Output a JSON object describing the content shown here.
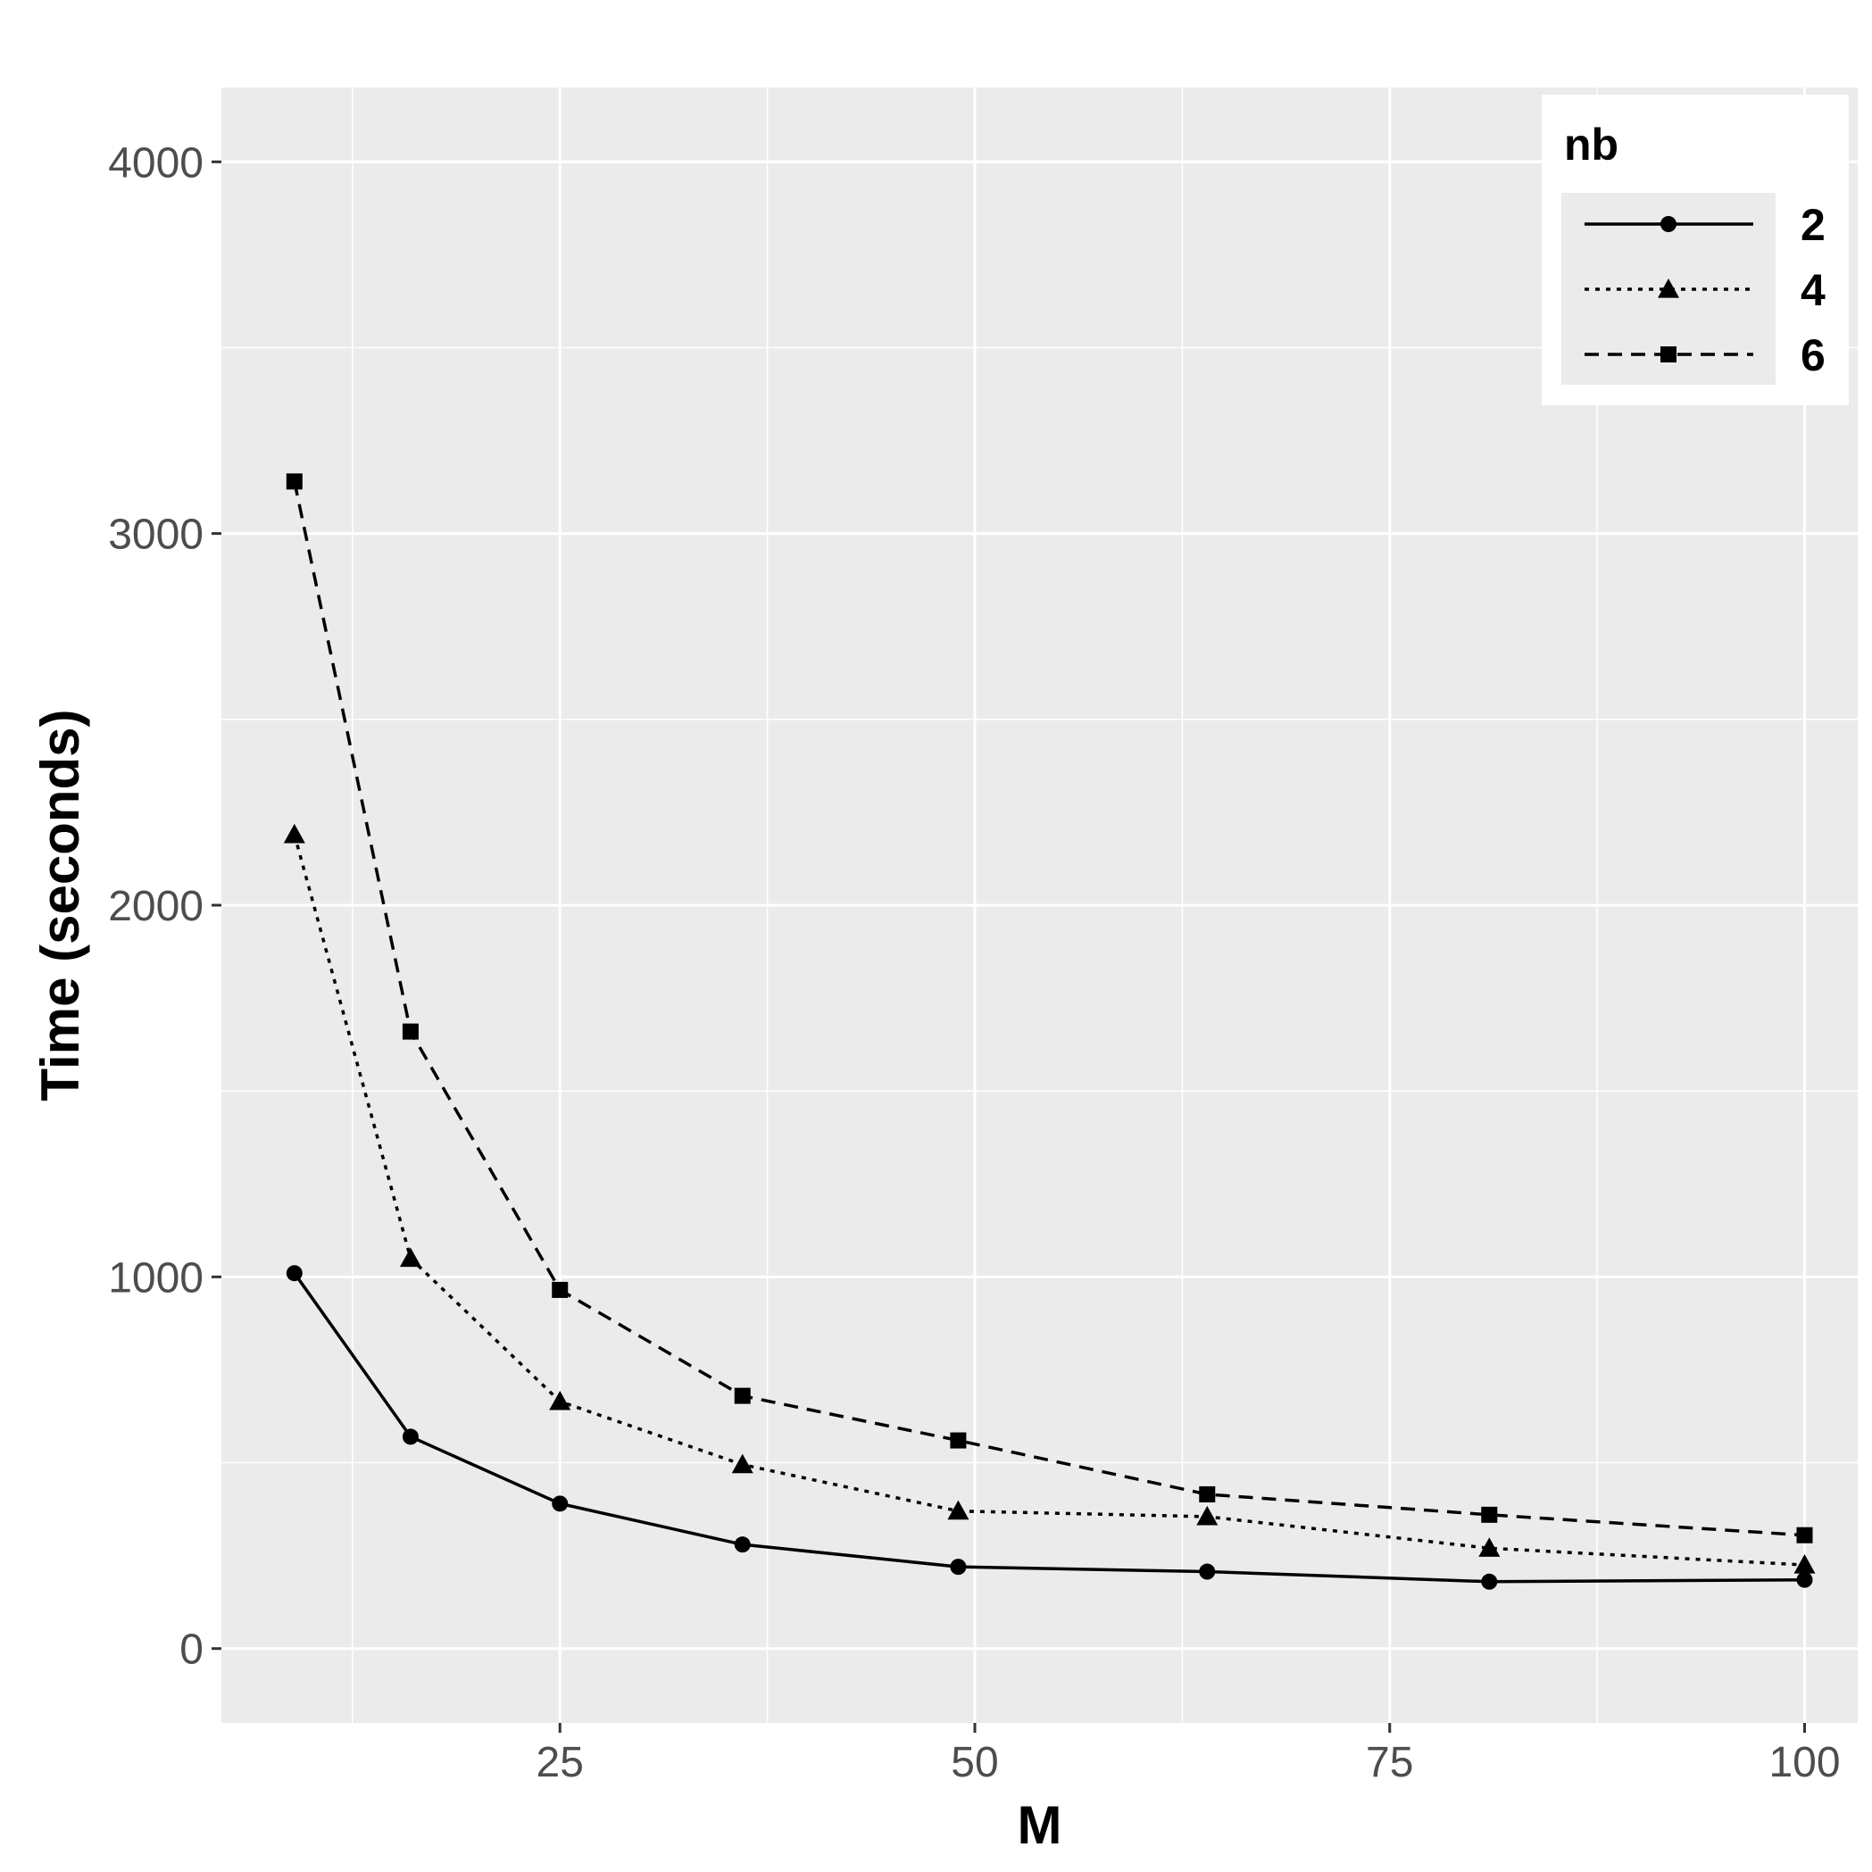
{
  "chart_data": {
    "type": "line",
    "xlabel": "M",
    "ylabel": "Time (seconds)",
    "xlim": [
      4.6,
      103.2
    ],
    "ylim": [
      -200,
      4200
    ],
    "x_ticks": [
      25,
      50,
      75,
      100
    ],
    "x_tick_labels": [
      "25",
      "50",
      "75",
      "100"
    ],
    "y_ticks": [
      0,
      1000,
      2000,
      3000,
      4000
    ],
    "y_tick_labels": [
      "0",
      "1000",
      "2000",
      "3000",
      "4000"
    ],
    "x": [
      9,
      16,
      25,
      36,
      49,
      64,
      81,
      100
    ],
    "series": [
      {
        "name": "2",
        "values": [
          1010,
          570,
          390,
          280,
          220,
          207,
          180,
          185
        ],
        "marker": "circle",
        "linetype": "solid"
      },
      {
        "name": "4",
        "values": [
          2190,
          1050,
          665,
          495,
          370,
          355,
          270,
          225
        ],
        "marker": "triangle",
        "linetype": "dotted"
      },
      {
        "name": "6",
        "values": [
          3140,
          1660,
          965,
          680,
          560,
          415,
          360,
          305
        ],
        "marker": "square",
        "linetype": "dashed"
      }
    ],
    "legend": {
      "title": "nb",
      "position": "top-right",
      "entries": [
        "2",
        "4",
        "6"
      ]
    },
    "grid": true,
    "colors": {
      "panel": "#ebebeb",
      "grid": "#ffffff",
      "series": "#000000",
      "tick_text": "#4d4d4d"
    }
  }
}
